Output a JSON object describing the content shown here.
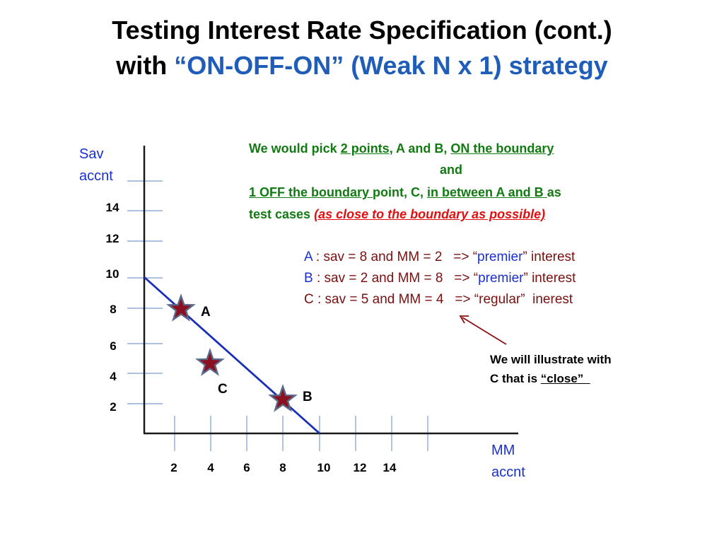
{
  "title": {
    "line1": "Testing Interest Rate Specification (cont.)",
    "line2_prefix": "with ",
    "line2_highlight": "“ON-OFF-ON” (Weak N x 1) strategy"
  },
  "axes": {
    "y_label_1": "Sav",
    "y_label_2": "accnt",
    "x_label_1": "MM",
    "x_label_2": "accnt",
    "y_ticks": [
      "14",
      "12",
      "10",
      "8",
      "6",
      "4",
      "2"
    ],
    "x_ticks": [
      "2",
      "4",
      "6",
      "8",
      "10",
      "12",
      "14"
    ]
  },
  "points": {
    "a_label": "A",
    "b_label": "B",
    "c_label": "C"
  },
  "description": {
    "l1_pre": "We would pick ",
    "l1_u1": "2 points",
    "l1_mid": ", A and B, ",
    "l1_u2": "ON the boundary",
    "l2": "and",
    "l3_u1": "1 OFF the boundary ",
    "l3_mid": "point, C, ",
    "l3_u2": "in between A and B ",
    "l3_post": "as",
    "l4_pre": "test cases ",
    "l4_red": "(as close to the boundary as possible)"
  },
  "cases": {
    "a_name": "A",
    "a_text": " : sav = 8 and MM = 2   => “",
    "a_premier": "premier",
    "a_tail": "” interest",
    "b_name": "B",
    "b_text": " : sav = 2 and MM = 8   => “",
    "b_premier": "premier",
    "b_tail": "” interest",
    "c_text": "C : sav = 5 and MM = 4   => “regular”  inerest"
  },
  "note": {
    "line1": "We will illustrate with",
    "line2_pre": "C that is ",
    "line2_u": "“close”  "
  },
  "colors": {
    "axis": "#1a1a1a",
    "tick": "#7a9cd0",
    "boundary": "#1a2fb8",
    "star_fill": "#8b1020",
    "star_outline": "#5a6a8c",
    "arrow": "#8b1010"
  }
}
